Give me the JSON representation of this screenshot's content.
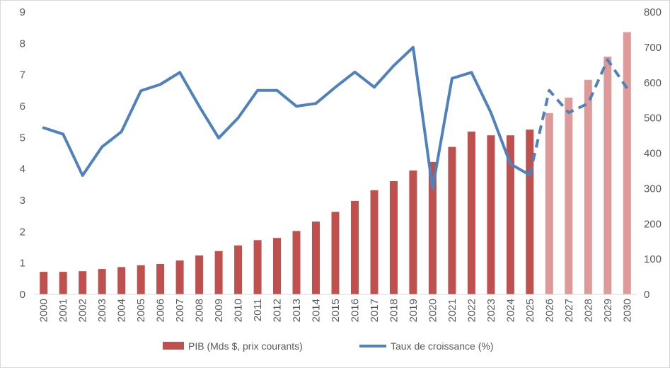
{
  "chart_data": {
    "type": "bar",
    "categories": [
      "2000",
      "2001",
      "2002",
      "2003",
      "2004",
      "2005",
      "2006",
      "2007",
      "2008",
      "2009",
      "2010",
      "2011",
      "2012",
      "2013",
      "2014",
      "2015",
      "2016",
      "2017",
      "2018",
      "2019",
      "2020",
      "2021",
      "2022",
      "2023",
      "2024",
      "2025",
      "2026",
      "2027",
      "2028",
      "2029",
      "2030"
    ],
    "series": [
      {
        "name": "PIB (Mds $, prix courants)",
        "kind": "bar",
        "axis": "left",
        "color": "#c0504d",
        "forecast_color": "#dd9a98",
        "values": [
          0.72,
          0.72,
          0.74,
          0.81,
          0.87,
          0.93,
          0.97,
          1.08,
          1.24,
          1.38,
          1.56,
          1.73,
          1.8,
          2.02,
          2.32,
          2.63,
          2.98,
          3.32,
          3.61,
          3.95,
          4.22,
          4.7,
          5.19,
          5.07,
          5.07,
          5.25,
          5.78,
          6.27,
          6.84,
          7.58,
          8.36
        ]
      },
      {
        "name": "Taux de croissance (%)",
        "kind": "line",
        "axis": "right",
        "color": "#4f81bd",
        "values": [
          472,
          454,
          337,
          418,
          461,
          577,
          595,
          629,
          533,
          443,
          500,
          578,
          578,
          533,
          541,
          587,
          630,
          587,
          648,
          700,
          300,
          612,
          629,
          515,
          370,
          338,
          578,
          515,
          541,
          665,
          584
        ]
      }
    ],
    "forecast_start_index": 26,
    "yleft_lim": [
      0,
      9
    ],
    "yleft_ticks": [
      "0",
      "1",
      "2",
      "3",
      "4",
      "5",
      "6",
      "7",
      "8",
      "9"
    ],
    "yright_lim": [
      0,
      800
    ],
    "yright_ticks": [
      "0",
      "100",
      "200",
      "300",
      "400",
      "500",
      "600",
      "700",
      "800"
    ],
    "grid": false,
    "legend_position": "bottom"
  }
}
